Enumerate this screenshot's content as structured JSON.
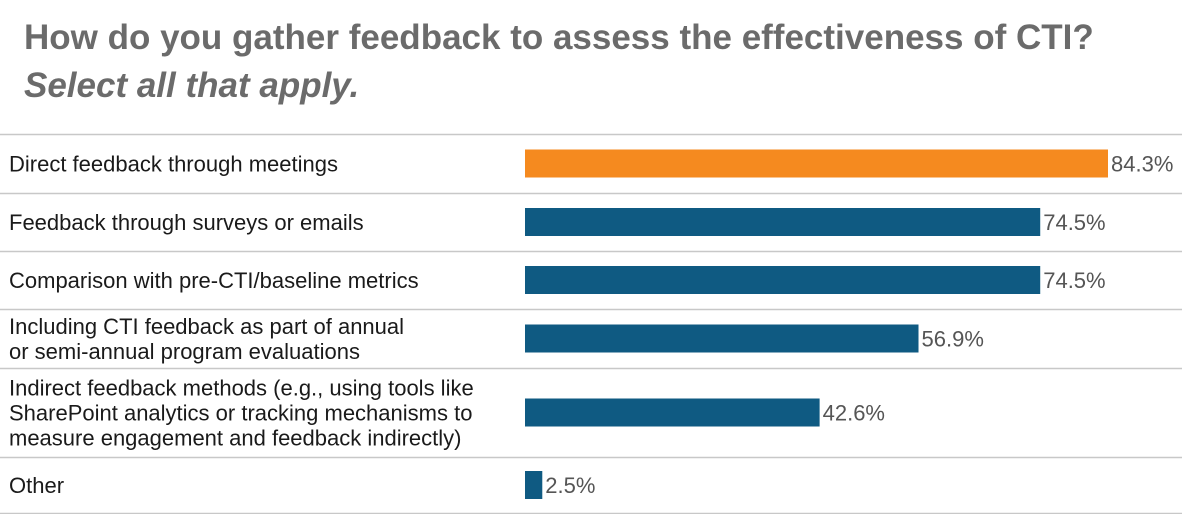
{
  "chart_data": {
    "type": "bar",
    "orientation": "horizontal",
    "title": "How do you gather feedback to assess the effectiveness of CTI?",
    "subtitle": "Select all that apply.",
    "categories": [
      [
        "Direct feedback through meetings"
      ],
      [
        "Feedback through surveys or emails"
      ],
      [
        "Comparison with pre-CTI/baseline metrics"
      ],
      [
        "Including CTI feedback as part of annual",
        "or semi-annual program evaluations"
      ],
      [
        "Indirect feedback methods (e.g., using tools like",
        "SharePoint analytics or tracking mechanisms to",
        "measure engagement and feedback indirectly)"
      ],
      [
        "Other"
      ]
    ],
    "values": [
      84.3,
      74.5,
      74.5,
      56.9,
      42.6,
      2.5
    ],
    "value_labels": [
      "84.3%",
      "74.5%",
      "74.5%",
      "56.9%",
      "42.6%",
      "2.5%"
    ],
    "colors": [
      "#f58a1f",
      "#0f5a82",
      "#0f5a82",
      "#0f5a82",
      "#0f5a82",
      "#0f5a82"
    ],
    "divider_color": "#c8c8c8",
    "xlim": [
      0,
      84.3
    ],
    "grid": false,
    "legend": "none"
  }
}
